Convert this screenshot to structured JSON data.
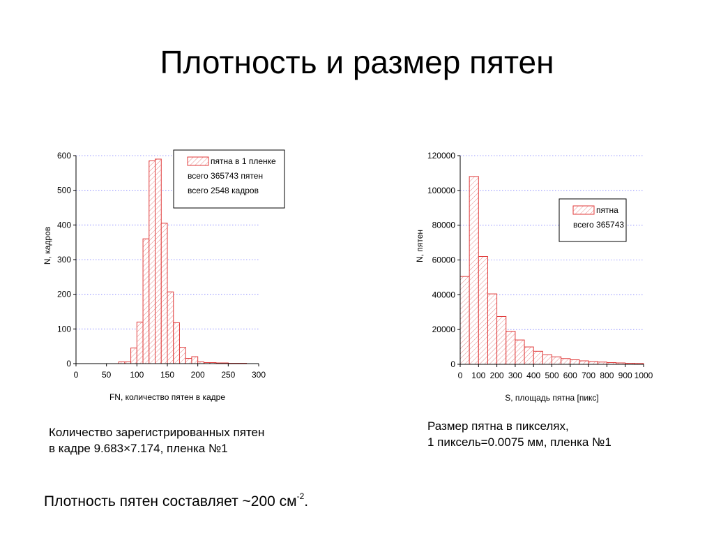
{
  "slide": {
    "title": "Плотность и размер пятен",
    "caption_left": [
      "Количество зарегистрированных пятен",
      "в кадре 9.683×7.174, пленка №1"
    ],
    "caption_right": [
      "Размер пятна в пикселях,",
      "1 пиксель=0.0075 мм, пленка №1"
    ],
    "density_text": "Плотность пятен составляет ~200 см",
    "density_exp": "-2",
    "density_end": "."
  },
  "colors": {
    "bar": "#e03a3a",
    "hatch": "#e88a8a",
    "grid": "#8080ff",
    "axis": "#000000"
  },
  "chart_data": [
    {
      "type": "bar",
      "xlabel": "FN, количество пятен в кадре",
      "ylabel": "N, кадров",
      "xlim": [
        0,
        300
      ],
      "ylim": [
        0,
        600
      ],
      "xticks": [
        "0",
        "50",
        "100",
        "150",
        "200",
        "250",
        "300"
      ],
      "yticks": [
        "0",
        "100",
        "200",
        "300",
        "400",
        "500",
        "600"
      ],
      "grid": true,
      "legend_position": "top-right",
      "legend": [
        "пятна в 1 пленке",
        "всего 365743 пятен",
        "всего 2548 кадров"
      ],
      "bin_width": 10,
      "bins": [
        {
          "x": 70,
          "value": 5
        },
        {
          "x": 80,
          "value": 5
        },
        {
          "x": 90,
          "value": 45
        },
        {
          "x": 100,
          "value": 120
        },
        {
          "x": 110,
          "value": 360
        },
        {
          "x": 120,
          "value": 585
        },
        {
          "x": 130,
          "value": 590
        },
        {
          "x": 140,
          "value": 405
        },
        {
          "x": 150,
          "value": 207
        },
        {
          "x": 160,
          "value": 118
        },
        {
          "x": 170,
          "value": 47
        },
        {
          "x": 180,
          "value": 15
        },
        {
          "x": 190,
          "value": 20
        },
        {
          "x": 200,
          "value": 5
        },
        {
          "x": 210,
          "value": 3
        },
        {
          "x": 220,
          "value": 3
        },
        {
          "x": 230,
          "value": 2
        },
        {
          "x": 240,
          "value": 2
        },
        {
          "x": 250,
          "value": 1
        },
        {
          "x": 260,
          "value": 1
        },
        {
          "x": 270,
          "value": 1
        }
      ]
    },
    {
      "type": "bar",
      "xlabel": "S, площадь пятна [пикс]",
      "ylabel": "N, пятен",
      "xlim": [
        0,
        1000
      ],
      "ylim": [
        0,
        120000
      ],
      "xticks": [
        "0",
        "100",
        "200",
        "300",
        "400",
        "500",
        "600",
        "700",
        "800",
        "900",
        "1000"
      ],
      "yticks": [
        "0",
        "20000",
        "40000",
        "60000",
        "80000",
        "100000",
        "120000"
      ],
      "grid": true,
      "legend_position": "top-right",
      "legend": [
        "пятна",
        "всего 365743"
      ],
      "bin_width": 50,
      "bins": [
        {
          "x": 0,
          "value": 50500
        },
        {
          "x": 50,
          "value": 108000
        },
        {
          "x": 100,
          "value": 62000
        },
        {
          "x": 150,
          "value": 40500
        },
        {
          "x": 200,
          "value": 27500
        },
        {
          "x": 250,
          "value": 19000
        },
        {
          "x": 300,
          "value": 14000
        },
        {
          "x": 350,
          "value": 10000
        },
        {
          "x": 400,
          "value": 7500
        },
        {
          "x": 450,
          "value": 5500
        },
        {
          "x": 500,
          "value": 4300
        },
        {
          "x": 550,
          "value": 3300
        },
        {
          "x": 600,
          "value": 2600
        },
        {
          "x": 650,
          "value": 2000
        },
        {
          "x": 700,
          "value": 1600
        },
        {
          "x": 750,
          "value": 1300
        },
        {
          "x": 800,
          "value": 1000
        },
        {
          "x": 850,
          "value": 800
        },
        {
          "x": 900,
          "value": 600
        },
        {
          "x": 950,
          "value": 500
        }
      ]
    }
  ]
}
